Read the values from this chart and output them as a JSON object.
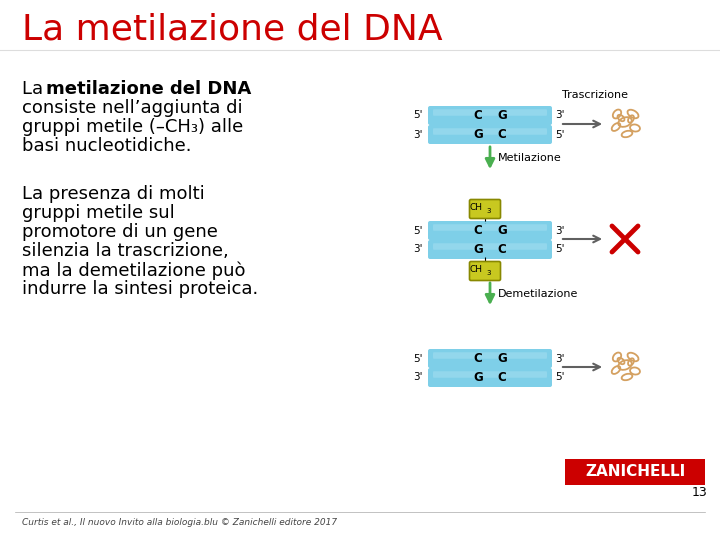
{
  "title": "La metilazione del DNA",
  "title_color": "#CC0000",
  "title_fontsize": 26,
  "bg_color": "#FFFFFF",
  "body_fontsize": 13,
  "dna_color": "#7ECFE8",
  "dna_lighter": "#A8DFF0",
  "methyl_color": "#C8C820",
  "methyl_border": "#888800",
  "label_trascrizione": "Trascrizione",
  "label_metilazione": "Metilazione",
  "label_demetilazione": "Demetilazione",
  "teal_arrow": "#4AAF50",
  "gray_arrow": "#606060",
  "red_x": "#CC0000",
  "blob_color": "#D4A060",
  "footer_text": "Curtis et al., Il nuovo Invito alla biologia.blu © Zanichelli editore 2017",
  "page_number": "13",
  "zanichelli_red": "#CC0000",
  "zanichelli_text": "ZANICHELLI"
}
